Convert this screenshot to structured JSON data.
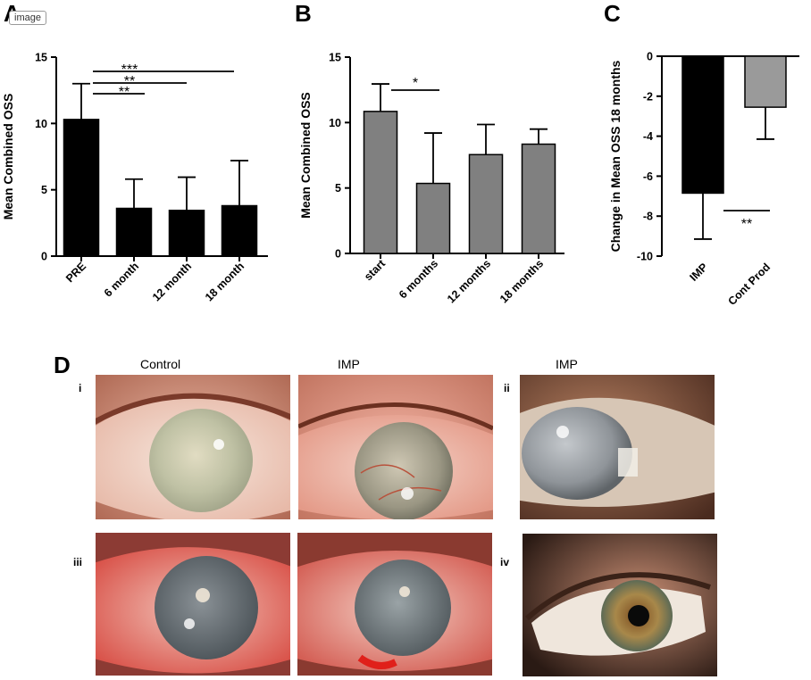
{
  "image_tag": "image",
  "panels": {
    "A": "A",
    "B": "B",
    "C": "C",
    "D": "D"
  },
  "chart_data": [
    {
      "panel": "A",
      "type": "bar",
      "categories": [
        "PRE",
        "6 month",
        "12 month",
        "18 month"
      ],
      "values": [
        10.3,
        3.6,
        3.45,
        3.8
      ],
      "errors": [
        2.7,
        2.2,
        2.5,
        3.4
      ],
      "ylabel": "Mean  Combined OSS",
      "ylim": [
        0,
        15
      ],
      "yticks": [
        0,
        5,
        10,
        15
      ],
      "bar_color": "#000000",
      "significance": [
        {
          "from": "PRE",
          "to": "6 month",
          "label": "**"
        },
        {
          "from": "PRE",
          "to": "12 month",
          "label": "**"
        },
        {
          "from": "PRE",
          "to": "18 month",
          "label": "***"
        }
      ]
    },
    {
      "panel": "B",
      "type": "bar",
      "categories": [
        "start",
        "6 months",
        "12 months",
        "18 months"
      ],
      "values": [
        10.85,
        5.35,
        7.55,
        8.35
      ],
      "errors": [
        2.1,
        3.85,
        2.3,
        1.15
      ],
      "ylabel": "Mean  Combined OSS",
      "ylim": [
        0,
        15
      ],
      "yticks": [
        0,
        5,
        10,
        15
      ],
      "bar_color": "#808080",
      "significance": [
        {
          "from": "start",
          "to": "6 months",
          "label": "*"
        }
      ]
    },
    {
      "panel": "C",
      "type": "bar",
      "categories": [
        "IMP",
        "Cont Prod"
      ],
      "values": [
        -6.85,
        -2.55
      ],
      "errors": [
        2.3,
        1.6
      ],
      "ylabel": "Change in Mean OSS 18 months",
      "ylim": [
        -10,
        0
      ],
      "yticks": [
        0,
        -2,
        -4,
        -6,
        -8,
        -10
      ],
      "bar_colors": [
        "#000000",
        "#9a9a9a"
      ],
      "significance": [
        {
          "from": "IMP",
          "to": "Cont Prod",
          "label": "**"
        }
      ]
    }
  ],
  "photo_panel": {
    "column_headers": [
      "Control",
      "IMP",
      "IMP"
    ],
    "row_labels": [
      "i",
      "ii",
      "iii",
      "iv"
    ]
  }
}
